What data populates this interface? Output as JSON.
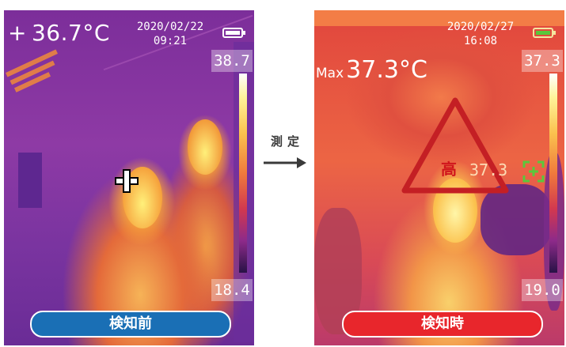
{
  "left_panel": {
    "reading": "36.7°C",
    "reading_prefix": "+",
    "date": "2020/02/22",
    "time": "09:21",
    "scale_max": "38.7",
    "scale_min": "18.4",
    "status_label": "検知前",
    "status_color": "#1a6fb5",
    "battery_icon": "battery-full-icon",
    "cursor_icon": "crosshair-icon"
  },
  "right_panel": {
    "max_prefix": "Max",
    "max_reading": "37.3°C",
    "date": "2020/02/27",
    "time": "16:08",
    "scale_max": "37.3",
    "scale_min": "19.0",
    "alert_text": "高",
    "alert_temp": "37.3",
    "status_label": "検知時",
    "status_color": "#e8262c",
    "alert_color": "#c41f24",
    "battery_icon": "battery-charging-icon",
    "focus_icon": "focus-bracket-icon"
  },
  "transition": {
    "label": "測定",
    "arrow_icon": "arrow-right-icon"
  }
}
